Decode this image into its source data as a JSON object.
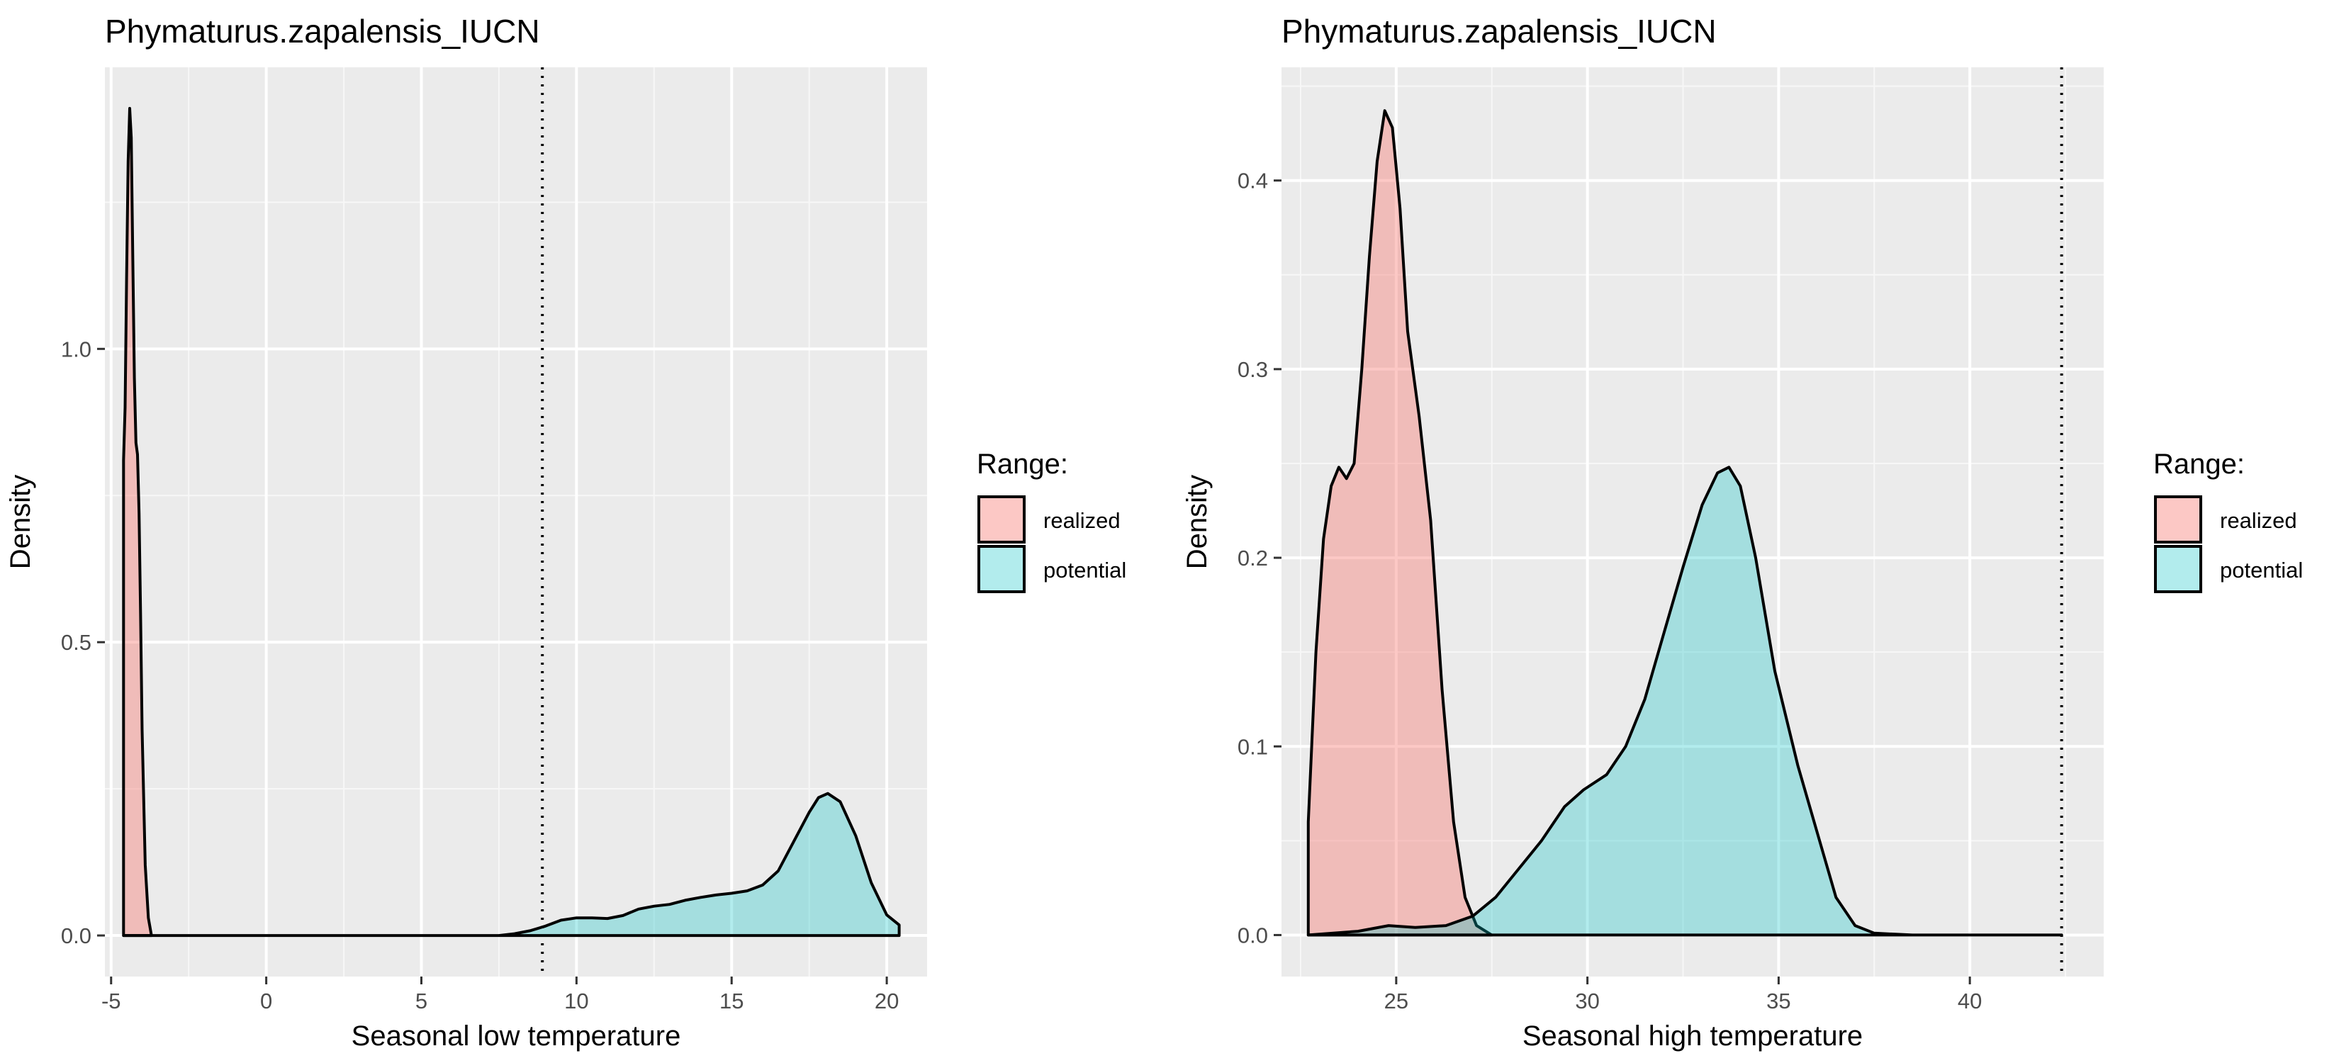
{
  "chart_data": [
    {
      "type": "area",
      "title": "Phymaturus.zapalensis_IUCN",
      "xlabel": "Seasonal low temperature",
      "ylabel": "Density",
      "xlim": [
        -5.2,
        21.3
      ],
      "ylim": [
        -0.07,
        1.48
      ],
      "x_ticks": [
        -5,
        0,
        5,
        10,
        15,
        20
      ],
      "x_tick_labels": [
        "-5",
        "0",
        "5",
        "10",
        "15",
        "20"
      ],
      "y_ticks": [
        0.0,
        0.5,
        1.0
      ],
      "y_tick_labels": [
        "0.0",
        "0.5",
        "1.0"
      ],
      "grid": true,
      "legend_position": "right",
      "legend_title": "Range:",
      "reference_line": {
        "x": 8.9,
        "style": "dotted"
      },
      "series": [
        {
          "name": "realized",
          "color": "#F8766D",
          "points": [
            [
              -4.6,
              0.0
            ],
            [
              -4.6,
              0.81
            ],
            [
              -4.55,
              0.9
            ],
            [
              -4.5,
              1.12
            ],
            [
              -4.45,
              1.32
            ],
            [
              -4.4,
              1.41
            ],
            [
              -4.35,
              1.36
            ],
            [
              -4.3,
              1.15
            ],
            [
              -4.25,
              0.95
            ],
            [
              -4.2,
              0.84
            ],
            [
              -4.15,
              0.82
            ],
            [
              -4.1,
              0.72
            ],
            [
              -4.05,
              0.55
            ],
            [
              -4.0,
              0.35
            ],
            [
              -3.9,
              0.12
            ],
            [
              -3.8,
              0.03
            ],
            [
              -3.7,
              0.0
            ]
          ]
        },
        {
          "name": "potential",
          "color": "#00BFC4",
          "points": [
            [
              -4.6,
              0.0
            ],
            [
              2.0,
              0.0
            ],
            [
              7.5,
              0.0
            ],
            [
              8.0,
              0.003
            ],
            [
              8.5,
              0.008
            ],
            [
              9.0,
              0.016
            ],
            [
              9.5,
              0.026
            ],
            [
              10.0,
              0.03
            ],
            [
              10.5,
              0.03
            ],
            [
              11.0,
              0.029
            ],
            [
              11.5,
              0.034
            ],
            [
              12.0,
              0.045
            ],
            [
              12.5,
              0.05
            ],
            [
              13.0,
              0.053
            ],
            [
              13.5,
              0.06
            ],
            [
              14.0,
              0.065
            ],
            [
              14.5,
              0.069
            ],
            [
              15.0,
              0.072
            ],
            [
              15.5,
              0.076
            ],
            [
              16.0,
              0.086
            ],
            [
              16.5,
              0.11
            ],
            [
              17.0,
              0.16
            ],
            [
              17.5,
              0.21
            ],
            [
              17.8,
              0.235
            ],
            [
              18.1,
              0.242
            ],
            [
              18.5,
              0.228
            ],
            [
              19.0,
              0.17
            ],
            [
              19.5,
              0.09
            ],
            [
              20.0,
              0.035
            ],
            [
              20.4,
              0.018
            ],
            [
              20.4,
              0.0
            ]
          ]
        }
      ]
    },
    {
      "type": "area",
      "title": "Phymaturus.zapalensis_IUCN",
      "xlabel": "Seasonal high temperature",
      "ylabel": "Density",
      "xlim": [
        22.0,
        43.5
      ],
      "ylim": [
        -0.022,
        0.46
      ],
      "x_ticks": [
        25,
        30,
        35,
        40
      ],
      "x_tick_labels": [
        "25",
        "30",
        "35",
        "40"
      ],
      "y_ticks": [
        0.0,
        0.1,
        0.2,
        0.3,
        0.4
      ],
      "y_tick_labels": [
        "0.0",
        "0.1",
        "0.2",
        "0.3",
        "0.4"
      ],
      "grid": true,
      "legend_position": "right",
      "legend_title": "Range:",
      "reference_line": {
        "x": 42.4,
        "style": "dotted"
      },
      "series": [
        {
          "name": "realized",
          "color": "#F8766D",
          "points": [
            [
              22.7,
              0.0
            ],
            [
              22.7,
              0.06
            ],
            [
              22.9,
              0.15
            ],
            [
              23.1,
              0.21
            ],
            [
              23.3,
              0.238
            ],
            [
              23.5,
              0.248
            ],
            [
              23.7,
              0.242
            ],
            [
              23.9,
              0.25
            ],
            [
              24.1,
              0.3
            ],
            [
              24.3,
              0.36
            ],
            [
              24.5,
              0.41
            ],
            [
              24.7,
              0.437
            ],
            [
              24.9,
              0.428
            ],
            [
              25.1,
              0.385
            ],
            [
              25.3,
              0.32
            ],
            [
              25.6,
              0.275
            ],
            [
              25.9,
              0.22
            ],
            [
              26.2,
              0.13
            ],
            [
              26.5,
              0.06
            ],
            [
              26.8,
              0.02
            ],
            [
              27.1,
              0.005
            ],
            [
              27.5,
              0.0
            ]
          ]
        },
        {
          "name": "potential",
          "color": "#00BFC4",
          "points": [
            [
              22.7,
              0.0
            ],
            [
              24.0,
              0.002
            ],
            [
              24.8,
              0.005
            ],
            [
              25.5,
              0.004
            ],
            [
              26.3,
              0.005
            ],
            [
              27.0,
              0.01
            ],
            [
              27.6,
              0.02
            ],
            [
              28.2,
              0.035
            ],
            [
              28.8,
              0.05
            ],
            [
              29.4,
              0.068
            ],
            [
              29.9,
              0.077
            ],
            [
              30.5,
              0.085
            ],
            [
              31.0,
              0.1
            ],
            [
              31.5,
              0.125
            ],
            [
              32.0,
              0.16
            ],
            [
              32.5,
              0.195
            ],
            [
              33.0,
              0.228
            ],
            [
              33.4,
              0.245
            ],
            [
              33.7,
              0.248
            ],
            [
              34.0,
              0.238
            ],
            [
              34.4,
              0.2
            ],
            [
              34.9,
              0.14
            ],
            [
              35.5,
              0.09
            ],
            [
              36.0,
              0.055
            ],
            [
              36.5,
              0.02
            ],
            [
              37.0,
              0.005
            ],
            [
              37.5,
              0.001
            ],
            [
              38.5,
              0.0
            ],
            [
              42.4,
              0.0
            ]
          ]
        }
      ]
    }
  ]
}
